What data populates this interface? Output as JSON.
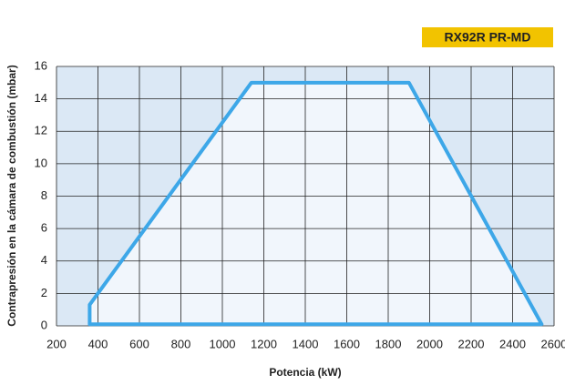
{
  "chart_data": {
    "type": "area",
    "title": "RX92R PR-MD",
    "xlabel": "Potencia (kW)",
    "ylabel": "Contrapresión en la cámara de combustión (mbar)",
    "x": [
      360,
      360,
      1140,
      1900,
      2540
    ],
    "series": [
      {
        "name": null,
        "color": "#3da7e8",
        "values": [
          0.1,
          1.3,
          15,
          15,
          0.1
        ]
      }
    ],
    "xlim": [
      200,
      2600
    ],
    "xticks": [
      200,
      400,
      600,
      800,
      1000,
      1200,
      1400,
      1600,
      1800,
      2000,
      2200,
      2400,
      2600
    ],
    "ylim": [
      0,
      16
    ],
    "yticks": [
      0,
      2,
      4,
      6,
      8,
      10,
      12,
      14,
      16
    ],
    "grid": true
  }
}
